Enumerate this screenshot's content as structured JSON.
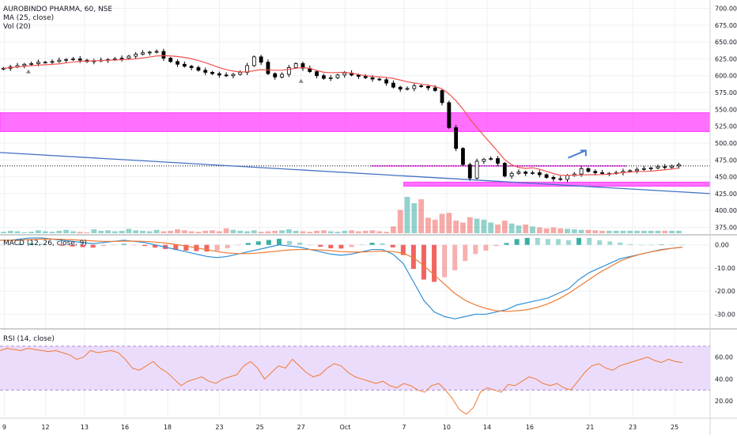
{
  "header": {
    "symbol_line": "AUROBINDO PHARMA, 60, NSE",
    "ma_label": "MA (25, close)",
    "vol_label": "Vol (20)"
  },
  "macd_pane": {
    "label": "MACD (12, 26, close, 9)"
  },
  "rsi_pane": {
    "label": "RSI (14, close)"
  },
  "colors": {
    "up": "#26a69a",
    "down": "#ef5350",
    "candle": "#000000",
    "ma": "#ef5350",
    "zone": "#ff40ff",
    "trendline": "#4472c4",
    "arrow": "#4a7fd4",
    "macd_line": "#2e8fd6",
    "signal_line": "#ef7a32",
    "rsi_line": "#ef7a32",
    "rsi_band": "#ecdcfb"
  },
  "chart_data": [
    {
      "type": "candlestick",
      "title": "AUROBINDO PHARMA, 60, NSE",
      "ylim": [
        365,
        710
      ],
      "yticks": [
        "700.00",
        "675.00",
        "650.00",
        "625.00",
        "600.00",
        "575.00",
        "550.00",
        "525.00",
        "500.00",
        "475.00",
        "450.00",
        "425.00",
        "400.00",
        "375.00"
      ],
      "ytick_values": [
        700,
        675,
        650,
        625,
        600,
        575,
        550,
        525,
        500,
        475,
        450,
        425,
        400,
        375
      ],
      "xticks": [
        "9",
        "12",
        "13",
        "16",
        "18",
        "23",
        "25",
        "27",
        "Oct",
        "7",
        "10",
        "14",
        "16",
        "21",
        "23",
        "25"
      ],
      "xtick_positions": [
        0.6,
        6.4,
        11.9,
        17.6,
        23.6,
        30.9,
        36.6,
        42.4,
        48.6,
        56.9,
        62.9,
        68.6,
        74.6,
        83.1,
        89.1,
        95.0
      ],
      "x_total": 102,
      "close_path": [
        611,
        613,
        615,
        617,
        618,
        620,
        620,
        621,
        623,
        624,
        625,
        623,
        621,
        622,
        623,
        624,
        625,
        626,
        629,
        632,
        634,
        635,
        636,
        626,
        621,
        617,
        614,
        612,
        608,
        605,
        603,
        601,
        600,
        602,
        605,
        615,
        628,
        620,
        603,
        598,
        602,
        612,
        618,
        611,
        606,
        600,
        596,
        597,
        601,
        604,
        601,
        599,
        597,
        595,
        594,
        589,
        583,
        580,
        581,
        585,
        584,
        582,
        578,
        560,
        523,
        492,
        468,
        448,
        473,
        476,
        477,
        470,
        451,
        455,
        457,
        455,
        456,
        453,
        449,
        447,
        446,
        452,
        454,
        462,
        458,
        456,
        455,
        455,
        456,
        458,
        459,
        461,
        462,
        463,
        465,
        464,
        466,
        468
      ],
      "zones": [
        {
          "label": "resistance-zone",
          "y0": 517,
          "y1": 545,
          "x0": 0,
          "x1": 102
        },
        {
          "label": "support-zone",
          "y0": 436,
          "y1": 442,
          "x0": 58,
          "x1": 102
        }
      ],
      "horizontal_lines": [
        {
          "y": 466,
          "x0": 53.3,
          "x1": 90,
          "style": "solid",
          "color": "zone"
        },
        {
          "y": 466,
          "x0": 0,
          "x1": 102,
          "style": "dotted",
          "color": "candle"
        }
      ],
      "trendline": {
        "x0": 0,
        "y0": 486,
        "x1": 102,
        "y1": 425
      },
      "arrow": {
        "x0": 80,
        "y0": 478,
        "x1": 82.5,
        "y1": 489
      },
      "triangle_markers": [
        {
          "x": 4,
          "y": 607
        },
        {
          "x": 42.4,
          "y": 593
        }
      ],
      "volume": [
        3,
        5,
        4,
        2,
        3,
        6,
        4,
        3,
        5,
        7,
        4,
        3,
        2,
        8,
        5,
        6,
        4,
        5,
        9,
        6,
        5,
        4,
        7,
        4,
        5,
        8,
        6,
        4,
        3,
        5,
        6,
        4,
        10,
        7,
        5,
        4,
        6,
        3,
        4,
        5,
        6,
        8,
        5,
        4,
        3,
        5,
        6,
        4,
        3,
        5,
        6,
        4,
        5,
        6,
        4,
        3,
        14,
        48,
        75,
        62,
        70,
        32,
        28,
        40,
        42,
        26,
        22,
        33,
        30,
        28,
        22,
        18,
        26,
        20,
        16,
        18,
        14,
        12,
        10,
        12,
        10,
        9,
        8,
        7,
        7,
        6,
        5,
        5,
        5,
        5,
        5,
        5,
        5,
        5,
        5,
        5,
        5,
        5
      ]
    },
    {
      "type": "line",
      "title": "MACD (12, 26, close, 9)",
      "ylim": [
        -36,
        4
      ],
      "yticks": [
        "0.00",
        "-10.00",
        "-20.00",
        "-30.00"
      ],
      "ytick_values": [
        0,
        -10,
        -20,
        -30
      ],
      "series": [
        {
          "color": "macd_line",
          "values": [
            2,
            2,
            2.5,
            3,
            3,
            2.5,
            2,
            1.5,
            1,
            0.5,
            1,
            1.5,
            2,
            1.5,
            1,
            0,
            -1,
            -2,
            -3,
            -4,
            -5,
            -5.5,
            -5,
            -4,
            -3,
            -2,
            -1,
            0,
            -0.5,
            -1,
            -2,
            -3,
            -4,
            -4.5,
            -4,
            -3,
            -2,
            -2,
            -4,
            -8,
            -16,
            -24,
            -29,
            -31,
            -32,
            -31,
            -30,
            -30,
            -29,
            -28,
            -26,
            -25,
            -24,
            -23,
            -21,
            -19,
            -15,
            -12,
            -10,
            -8,
            -6,
            -5,
            -4,
            -3,
            -2,
            -1.5,
            -1
          ]
        },
        {
          "color": "signal_line",
          "values": [
            2,
            2,
            2.1,
            2.3,
            2.5,
            2.5,
            2.4,
            2.2,
            2,
            1.7,
            1.5,
            1.5,
            1.6,
            1.6,
            1.5,
            1.2,
            0.8,
            0.2,
            -0.5,
            -1.3,
            -2.1,
            -2.9,
            -3.5,
            -3.8,
            -3.8,
            -3.5,
            -3.1,
            -2.6,
            -2.2,
            -2,
            -2,
            -2.2,
            -2.5,
            -2.9,
            -3.1,
            -3.1,
            -2.9,
            -2.7,
            -2.9,
            -3.6,
            -5.6,
            -9,
            -13,
            -17,
            -21,
            -24,
            -26,
            -27.5,
            -28.5,
            -28.8,
            -28.5,
            -28,
            -27,
            -25.5,
            -23.5,
            -21,
            -18,
            -15,
            -12,
            -9.5,
            -7,
            -5.3,
            -4,
            -3,
            -2.2,
            -1.5,
            -1
          ]
        }
      ]
    },
    {
      "type": "line",
      "title": "RSI (14, close)",
      "ylim": [
        5,
        85
      ],
      "yticks": [
        "60.00",
        "40.00",
        "20.00"
      ],
      "ytick_values": [
        60,
        40,
        20
      ],
      "band": [
        30,
        70
      ],
      "series": [
        {
          "color": "rsi_line",
          "values": [
            66,
            68,
            67,
            66,
            68,
            67,
            66,
            65,
            66,
            64,
            62,
            58,
            60,
            66,
            64,
            65,
            66,
            64,
            58,
            50,
            48,
            52,
            56,
            50,
            46,
            40,
            34,
            38,
            40,
            42,
            38,
            36,
            40,
            42,
            44,
            52,
            56,
            50,
            40,
            46,
            52,
            50,
            58,
            52,
            46,
            42,
            44,
            50,
            54,
            52,
            46,
            42,
            40,
            38,
            36,
            38,
            34,
            32,
            36,
            34,
            30,
            28,
            34,
            36,
            30,
            22,
            12,
            8,
            14,
            28,
            32,
            30,
            28,
            35,
            34,
            38,
            42,
            40,
            36,
            34,
            36,
            32,
            30,
            38,
            46,
            52,
            54,
            50,
            48,
            52,
            54,
            56,
            58,
            60,
            57,
            55,
            58,
            56,
            55
          ]
        }
      ]
    }
  ]
}
